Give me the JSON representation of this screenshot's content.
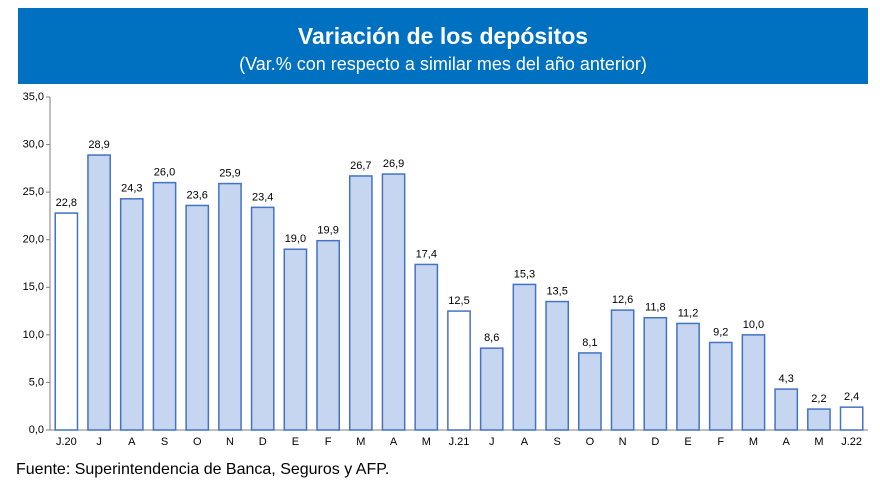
{
  "chart_data": {
    "type": "bar",
    "title": "Variación de los depósitos",
    "subtitle": "(Var.% con respecto a similar mes del año anterior)",
    "source": "Fuente: Superintendencia de Banca, Seguros y AFP.",
    "categories": [
      "J.20",
      "J",
      "A",
      "S",
      "O",
      "N",
      "D",
      "E",
      "F",
      "M",
      "A",
      "M",
      "J.21",
      "J",
      "A",
      "S",
      "O",
      "N",
      "D",
      "E",
      "F",
      "M",
      "A",
      "M",
      "J.22"
    ],
    "values": [
      22.8,
      28.9,
      24.3,
      26.0,
      23.6,
      25.9,
      23.4,
      19.0,
      19.9,
      26.7,
      26.9,
      17.4,
      12.5,
      8.6,
      15.3,
      13.5,
      8.1,
      12.6,
      11.8,
      11.2,
      9.2,
      10.0,
      4.3,
      2.2,
      2.4
    ],
    "value_labels": [
      "22,8",
      "28,9",
      "24,3",
      "26,0",
      "23,6",
      "25,9",
      "23,4",
      "19,0",
      "19,9",
      "26,7",
      "26,9",
      "17,4",
      "12,5",
      "8,6",
      "15,3",
      "13,5",
      "8,1",
      "12,6",
      "11,8",
      "11,2",
      "9,2",
      "10,0",
      "4,3",
      "2,2",
      "2,4"
    ],
    "colors": [
      "#ffffff",
      "#c6d6f0",
      "#c6d6f0",
      "#c6d6f0",
      "#c6d6f0",
      "#c6d6f0",
      "#c6d6f0",
      "#c6d6f0",
      "#c6d6f0",
      "#c6d6f0",
      "#c6d6f0",
      "#c6d6f0",
      "#ffffff",
      "#c6d6f0",
      "#c6d6f0",
      "#c6d6f0",
      "#c6d6f0",
      "#c6d6f0",
      "#c6d6f0",
      "#c6d6f0",
      "#c6d6f0",
      "#c6d6f0",
      "#c6d6f0",
      "#c6d6f0",
      "#ffffff"
    ],
    "edge_color": "#4472c4",
    "header_color": "#0070c0",
    "ylim": [
      0,
      35
    ],
    "yticks": [
      {
        "value": 0,
        "label": "0,0"
      },
      {
        "value": 5,
        "label": "5,0"
      },
      {
        "value": 10,
        "label": "10,0"
      },
      {
        "value": 15,
        "label": "15,0"
      },
      {
        "value": 20,
        "label": "20,0"
      },
      {
        "value": 25,
        "label": "25,0"
      },
      {
        "value": 30,
        "label": "30,0"
      },
      {
        "value": 35,
        "label": "35,0"
      }
    ],
    "grid": false
  }
}
